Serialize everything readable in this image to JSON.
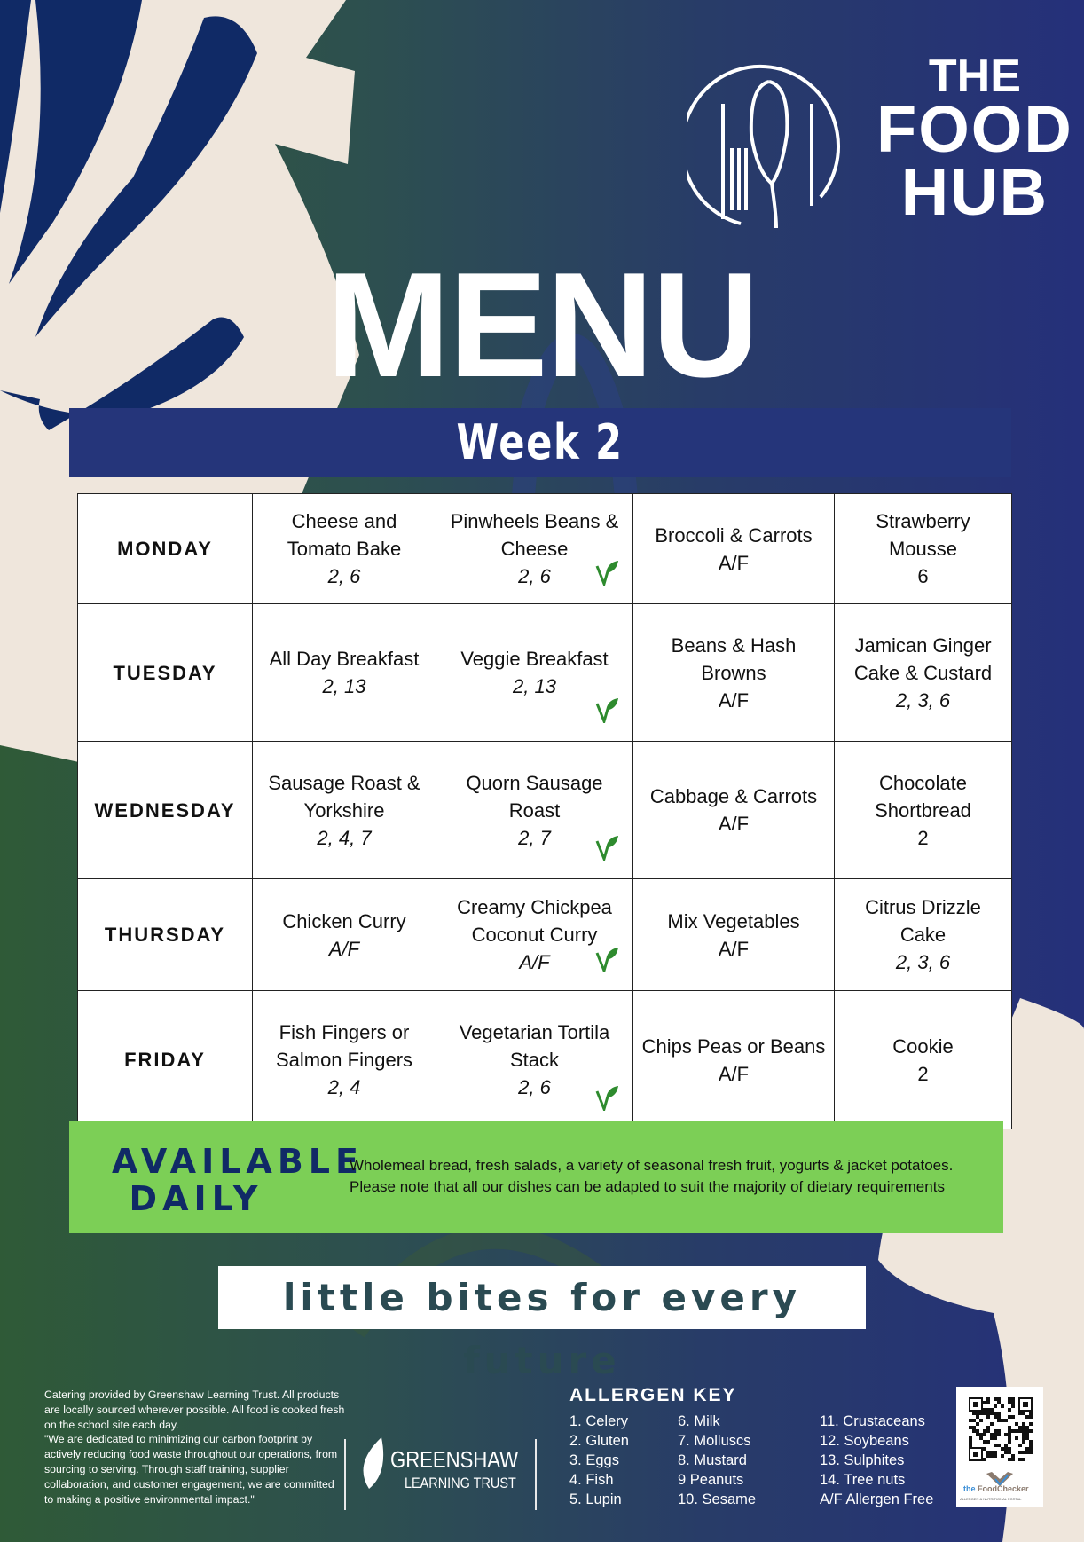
{
  "brand": {
    "line1": "THE",
    "line2": "FOOD",
    "line3": "HUB"
  },
  "title": "MENU",
  "week": "Week 2",
  "colors": {
    "navy": "#25357a",
    "green_box": "#7ccf56",
    "cream": "#efe6dc",
    "vegan_icon": "#2e8b2e"
  },
  "menu": [
    {
      "day": "MONDAY",
      "main": {
        "name": "Cheese and Tomato Bake",
        "allergens": "2, 6"
      },
      "veg": {
        "name": "Pinwheels Beans & Cheese",
        "allergens": "2, 6",
        "icon": "vegetarian-leaf-icon"
      },
      "side": {
        "name": "Broccoli & Carrots",
        "allergens": "A/F"
      },
      "dessert": {
        "name": "Strawberry Mousse",
        "allergens": "6"
      }
    },
    {
      "day": "TUESDAY",
      "main": {
        "name": "All Day Breakfast",
        "allergens": "2, 13"
      },
      "veg": {
        "name": "Veggie Breakfast",
        "allergens": "2, 13",
        "icon": "vegetarian-leaf-icon"
      },
      "side": {
        "name": "Beans & Hash Browns",
        "allergens": "A/F"
      },
      "dessert": {
        "name": "Jamican Ginger Cake & Custard",
        "allergens": "2, 3, 6"
      }
    },
    {
      "day": "WEDNESDAY",
      "main": {
        "name": "Sausage Roast & Yorkshire",
        "allergens": "2, 4, 7"
      },
      "veg": {
        "name": "Quorn Sausage Roast",
        "allergens": "2, 7",
        "icon": "vegetarian-leaf-icon"
      },
      "side": {
        "name": "Cabbage & Carrots",
        "allergens": "A/F"
      },
      "dessert": {
        "name": "Chocolate Shortbread",
        "allergens": "2"
      }
    },
    {
      "day": "THURSDAY",
      "main": {
        "name": "Chicken Curry",
        "allergens": "A/F"
      },
      "veg": {
        "name": "Creamy Chickpea Coconut Curry",
        "allergens": "A/F",
        "icon": "vegetarian-leaf-icon"
      },
      "side": {
        "name": "Mix Vegetables",
        "allergens": "A/F"
      },
      "dessert": {
        "name": "Citrus Drizzle Cake",
        "allergens": "2, 3, 6"
      }
    },
    {
      "day": "FRIDAY",
      "main": {
        "name": "Fish Fingers or Salmon Fingers",
        "allergens": "2, 4"
      },
      "veg": {
        "name": "Vegetarian Tortila Stack",
        "allergens": "2, 6",
        "icon": "vegetarian-leaf-icon"
      },
      "side": {
        "name": "Chips Peas or Beans",
        "allergens": "A/F"
      },
      "dessert": {
        "name": "Cookie",
        "allergens": "2"
      }
    }
  ],
  "available_daily": {
    "title_line1": "AVAILABLE",
    "title_line2": "DAILY",
    "text_line1": "Wholemeal bread, fresh salads, a variety of seasonal fresh fruit, yogurts & jacket potatoes.",
    "text_line2": "Please note that all our dishes can be adapted to suit the majority of dietary requirements"
  },
  "tagline": "little bites for every future",
  "footer": {
    "text": "Catering provided by Greenshaw Learning Trust. All products are locally sourced wherever possible. All food is cooked fresh on the school site each day.",
    "quote": "\"We are dedicated to minimizing our carbon footprint by actively reducing food waste throughout our operations, from sourcing to serving. Through staff training, supplier collaboration, and customer engagement, we are committed to making a positive environmental impact.\"",
    "trust_name": "GREENSHAW",
    "trust_sub": "LEARNING TRUST"
  },
  "allergen_key": {
    "title": "ALLERGEN KEY",
    "items": [
      "1. Celery",
      "2. Gluten",
      "3. Eggs",
      "4. Fish",
      "5. Lupin",
      "6. Milk",
      "7. Molluscs",
      "8. Mustard",
      "9 Peanuts",
      "10. Sesame",
      "11. Crustaceans",
      "12. Soybeans",
      "13. Sulphites",
      "14. Tree nuts",
      "A/F Allergen Free"
    ]
  },
  "qr": {
    "brand_the": "the",
    "brand_name": "FoodChecker",
    "brand_sub": "ALLERGEN & NUTRITIONAL PORTAL"
  }
}
